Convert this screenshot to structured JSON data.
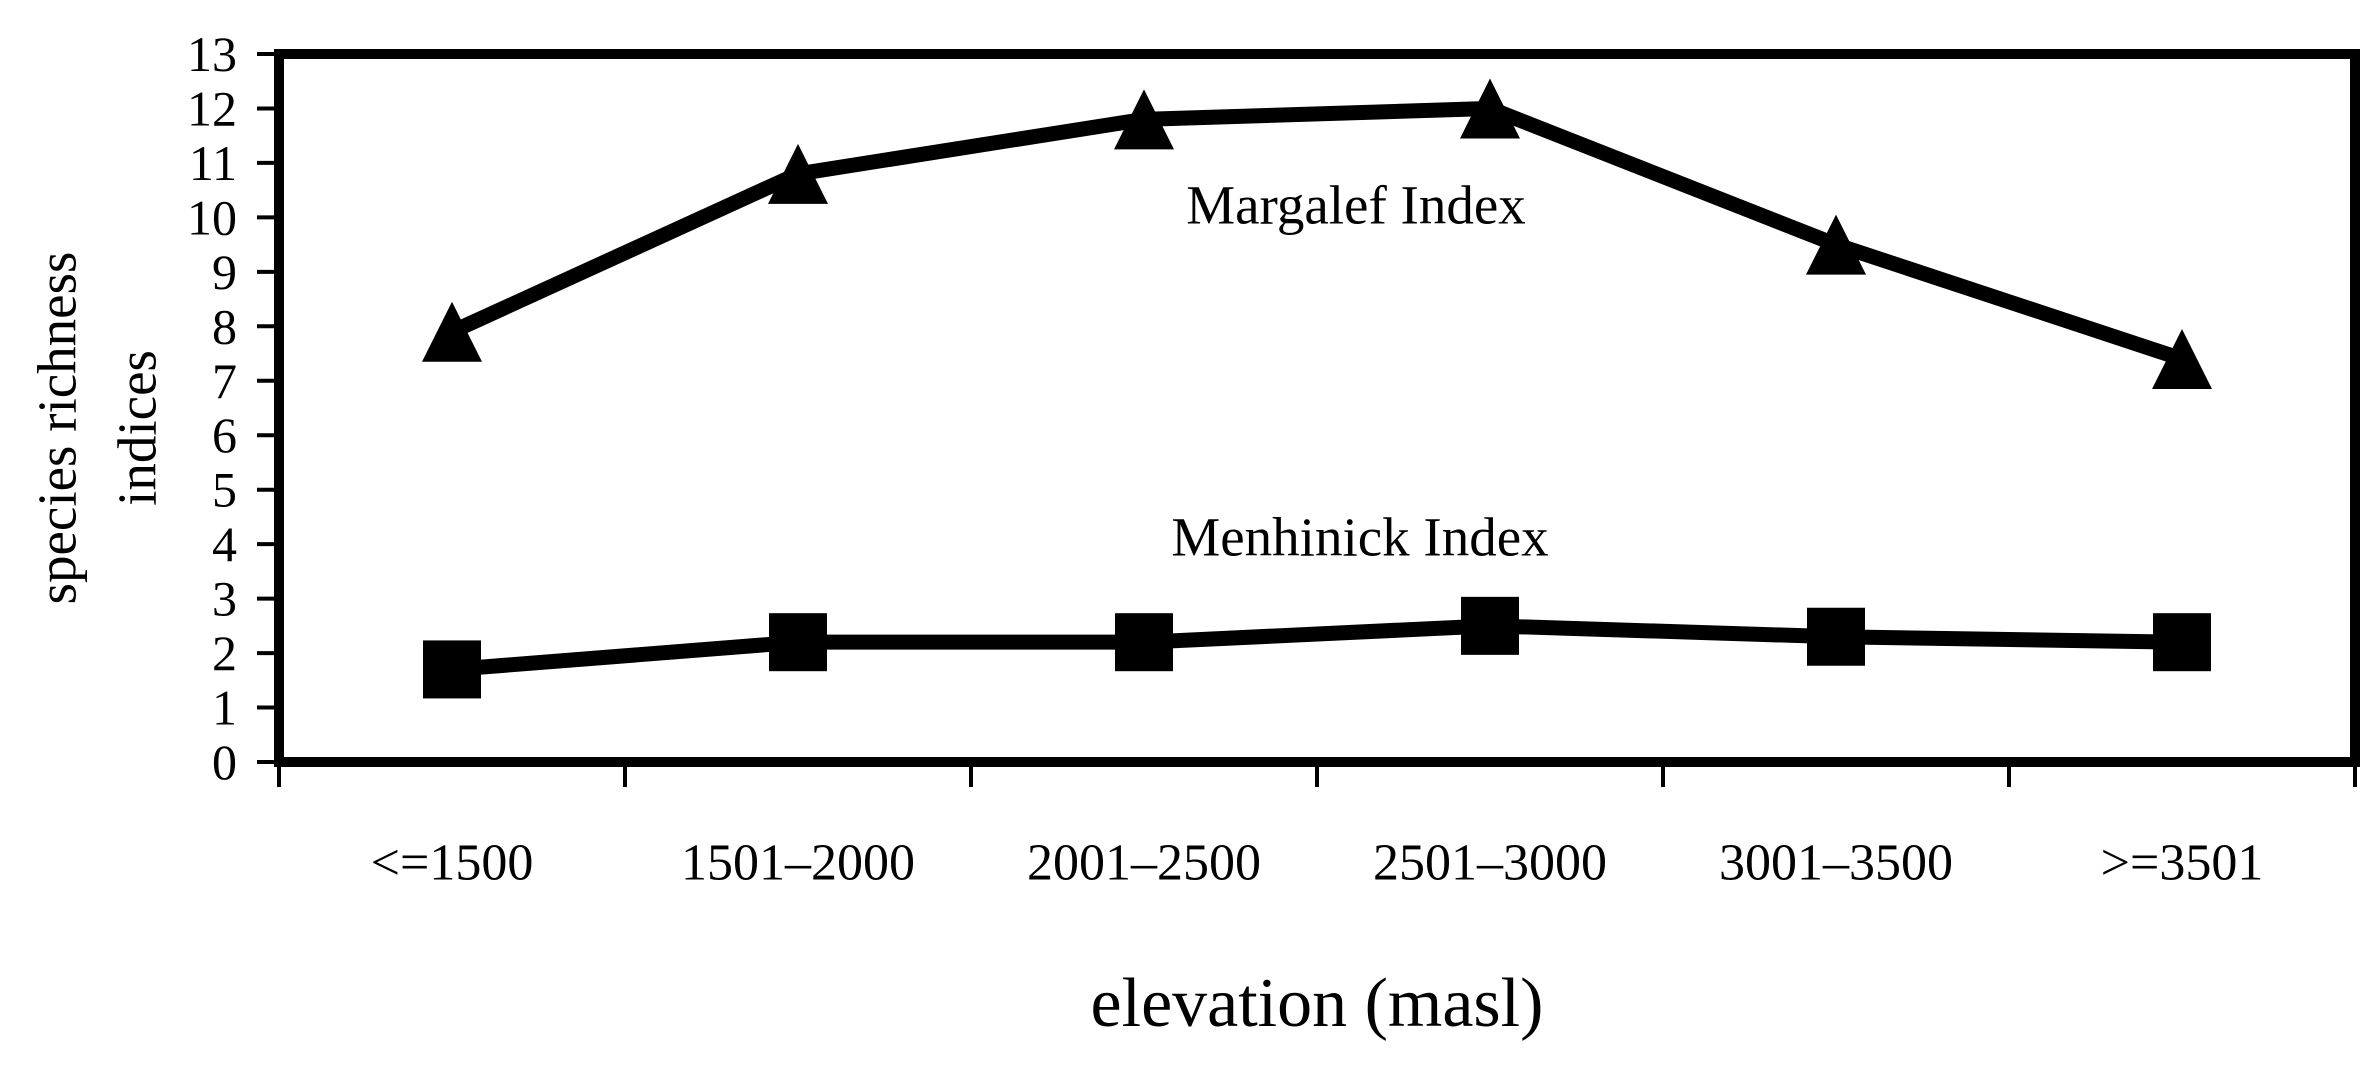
{
  "chart_data": {
    "type": "line",
    "title": "",
    "xlabel": "elevation (masl)",
    "ylabel_lines": [
      "species richness",
      "indices"
    ],
    "categories": [
      "<=1500",
      "1501–2000",
      "2001–2500",
      "2501–3000",
      "3001–3500",
      ">=3501"
    ],
    "y_ticks": [
      0,
      1,
      2,
      3,
      4,
      5,
      6,
      7,
      8,
      9,
      10,
      11,
      12,
      13
    ],
    "ylim": [
      0,
      13
    ],
    "grid": false,
    "legend_position": "inline-annotations",
    "series": [
      {
        "name": "Margalef Index",
        "marker": "triangle",
        "values": [
          7.9,
          10.8,
          11.8,
          12.0,
          9.5,
          7.4
        ]
      },
      {
        "name": "Menhinick Index",
        "marker": "square",
        "values": [
          1.7,
          2.2,
          2.2,
          2.5,
          2.3,
          2.2
        ]
      }
    ],
    "line_color": "#000000",
    "background_color": "#ffffff"
  }
}
